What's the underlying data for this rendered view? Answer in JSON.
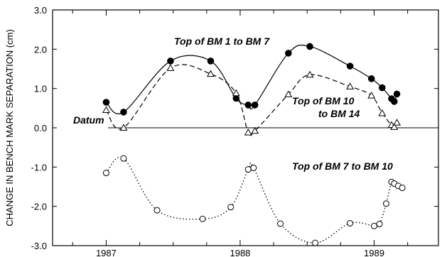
{
  "chart_data": {
    "type": "line",
    "ylabel": "CHANGE IN BENCH MARK SEPARATION (cm)",
    "xlabel": "",
    "xlim": [
      1986.6,
      1989.48
    ],
    "ylim": [
      -3.0,
      3.0
    ],
    "x_ticks": [
      1987,
      1988,
      1989
    ],
    "x_tick_labels": [
      "1987",
      "1988",
      "1989"
    ],
    "y_ticks": [
      3.0,
      2.0,
      1.0,
      0.0,
      -1.0,
      -2.0,
      -3.0
    ],
    "y_tick_labels": [
      "3.0",
      "2.0",
      "1.0",
      "0.0",
      "-1.0",
      "-2.0",
      "-3.0"
    ],
    "grid": false,
    "datum_label": "Datum",
    "series": [
      {
        "name": "Top of BM 1 to BM 7",
        "label_lines": [
          "Top of BM 1 to BM 7"
        ],
        "marker": "filled-circle",
        "line_style": "solid",
        "x": [
          1987.0,
          1987.13,
          1987.48,
          1987.78,
          1987.97,
          1988.06,
          1988.11,
          1988.36,
          1988.52,
          1988.82,
          1988.98,
          1989.06,
          1989.13,
          1989.15,
          1989.17
        ],
        "y": [
          0.65,
          0.4,
          1.7,
          1.7,
          0.75,
          0.58,
          0.58,
          1.9,
          2.07,
          1.57,
          1.25,
          1.02,
          0.74,
          0.67,
          0.86
        ]
      },
      {
        "name": "Top of BM 10 to BM 14",
        "label_lines": [
          "Top of BM 10",
          "to BM 14"
        ],
        "marker": "open-triangle",
        "line_style": "dashed",
        "x": [
          1987.0,
          1987.13,
          1987.48,
          1987.78,
          1987.97,
          1988.06,
          1988.11,
          1988.36,
          1988.52,
          1988.82,
          1988.98,
          1989.06,
          1989.13,
          1989.15,
          1989.17
        ],
        "y": [
          0.45,
          0.0,
          1.52,
          1.37,
          0.88,
          -0.12,
          -0.08,
          0.85,
          1.35,
          1.05,
          0.82,
          0.37,
          0.07,
          0.02,
          0.13
        ]
      },
      {
        "name": "Top of BM 7 to BM 10",
        "label_lines": [
          "Top of BM 7 to BM 10"
        ],
        "marker": "open-circle",
        "line_style": "dotted",
        "x": [
          1987.0,
          1987.13,
          1987.38,
          1987.72,
          1987.93,
          1988.06,
          1988.1,
          1988.3,
          1988.56,
          1988.82,
          1989.0,
          1989.04,
          1989.09,
          1989.13,
          1989.15,
          1989.18,
          1989.21
        ],
        "y": [
          -1.15,
          -0.78,
          -2.1,
          -2.32,
          -2.02,
          -1.06,
          -1.02,
          -2.44,
          -2.93,
          -2.43,
          -2.5,
          -2.45,
          -1.93,
          -1.38,
          -1.42,
          -1.48,
          -1.53
        ]
      }
    ]
  }
}
